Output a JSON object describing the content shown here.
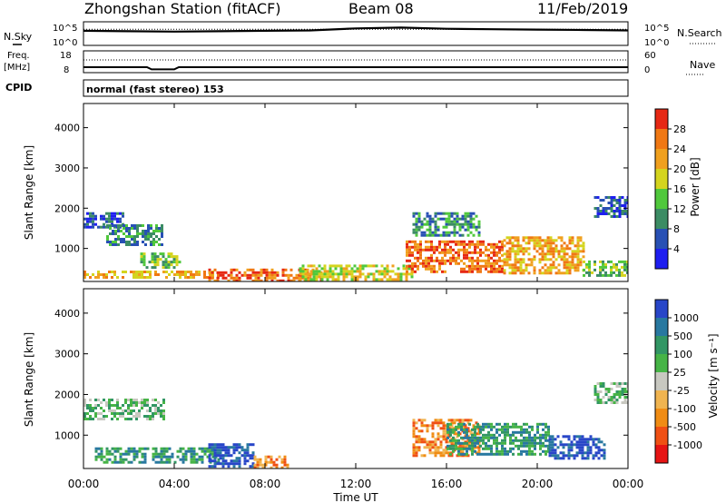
{
  "header": {
    "station": "Zhongshan Station (fitACF)",
    "beam": "Beam 08",
    "date": "11/Feb/2019"
  },
  "labels": {
    "nsky": "N.Sky",
    "nsearch": "N.Search",
    "freq": "Freq.",
    "mhz": "[MHz]",
    "nave": "Nave",
    "cpid": "CPID",
    "cpid_value": "normal (fast stereo) 153",
    "xlabel": "Time UT"
  },
  "chart_data": [
    {
      "type": "line",
      "panel": "noise",
      "y_ticks_left": [
        "10^5",
        "10^0"
      ],
      "y_ticks_right": [
        "10^5",
        "10^0"
      ],
      "series": [
        {
          "name": "N.Sky",
          "x": [
            0,
            2,
            4,
            6,
            8,
            10,
            12,
            14,
            16,
            18,
            20,
            22,
            24
          ],
          "values": [
            3.2,
            3.1,
            3.0,
            3.1,
            3.2,
            3.3,
            3.8,
            4.0,
            3.7,
            3.6,
            3.5,
            3.4,
            3.3
          ]
        },
        {
          "name": "N.Search",
          "x": [
            0,
            4,
            8,
            12,
            16,
            20,
            24
          ],
          "values": [
            3.6,
            3.6,
            3.6,
            3.6,
            3.6,
            3.6,
            3.6
          ]
        }
      ]
    },
    {
      "type": "line",
      "panel": "freq-nave",
      "y_ticks_left": [
        "18",
        "8"
      ],
      "y_ticks_right": [
        "60",
        "0"
      ],
      "series": [
        {
          "name": "Freq.",
          "x": [
            0,
            2.8,
            3.0,
            4.0,
            4.2,
            24
          ],
          "values": [
            10.0,
            10.0,
            8.8,
            8.8,
            10.0,
            10.0
          ]
        },
        {
          "name": "Nave",
          "x": [
            0,
            24
          ],
          "values": [
            36,
            36
          ]
        }
      ]
    },
    {
      "type": "heatmap",
      "panel": "power",
      "ylabel": "Slant Range [km]",
      "y_ticks": [
        1000,
        2000,
        3000,
        4000
      ],
      "ylim": [
        180,
        4600
      ],
      "xlim": [
        0,
        24
      ],
      "colorbar": {
        "label": "Power [dB]",
        "ticks": [
          4,
          8,
          12,
          16,
          20,
          24,
          28
        ],
        "colors": [
          "#1e1ef0",
          "#2850b4",
          "#3c8c64",
          "#50c83c",
          "#d4d41e",
          "#f0a01e",
          "#f07814",
          "#e62814"
        ]
      },
      "regions": [
        {
          "t": [
            0.0,
            1.8
          ],
          "r": [
            1500,
            1900
          ],
          "level": 1
        },
        {
          "t": [
            1.0,
            3.5
          ],
          "r": [
            1100,
            1600
          ],
          "level": 2
        },
        {
          "t": [
            0.0,
            6.0
          ],
          "r": [
            250,
            450
          ],
          "level": 5
        },
        {
          "t": [
            2.5,
            4.2
          ],
          "r": [
            550,
            900
          ],
          "level": 3
        },
        {
          "t": [
            5.5,
            10.5
          ],
          "r": [
            200,
            500
          ],
          "level": 6
        },
        {
          "t": [
            9.5,
            14.5
          ],
          "r": [
            250,
            600
          ],
          "level": 4
        },
        {
          "t": [
            14.2,
            18.5
          ],
          "r": [
            400,
            1200
          ],
          "level": 6
        },
        {
          "t": [
            14.5,
            17.5
          ],
          "r": [
            1300,
            1900
          ],
          "level": 2
        },
        {
          "t": [
            18.5,
            22.0
          ],
          "r": [
            400,
            1300
          ],
          "level": 5
        },
        {
          "t": [
            22.0,
            24.0
          ],
          "r": [
            300,
            700
          ],
          "level": 3
        },
        {
          "t": [
            22.5,
            24.0
          ],
          "r": [
            1800,
            2300
          ],
          "level": 1
        }
      ]
    },
    {
      "type": "heatmap",
      "panel": "velocity",
      "ylabel": "Slant Range [km]",
      "y_ticks": [
        1000,
        2000,
        3000,
        4000
      ],
      "ylim": [
        180,
        4600
      ],
      "xlim": [
        0,
        24
      ],
      "x_ticks": [
        "00:00",
        "04:00",
        "08:00",
        "12:00",
        "16:00",
        "20:00",
        "00:00"
      ],
      "colorbar": {
        "label": "Velocity [m s⁻¹]",
        "ticks": [
          1000,
          500,
          100,
          25,
          -25,
          -100,
          -500,
          -1000
        ],
        "colors": [
          "#2846c8",
          "#2878a0",
          "#329664",
          "#46b446",
          "#c8c8c0",
          "#f0b450",
          "#f08c14",
          "#f05014",
          "#e61414"
        ]
      },
      "regions": [
        {
          "t": [
            0.0,
            3.5
          ],
          "r": [
            1400,
            1900
          ],
          "v": 25
        },
        {
          "t": [
            0.5,
            6.0
          ],
          "r": [
            300,
            700
          ],
          "v": 100
        },
        {
          "t": [
            5.5,
            7.5
          ],
          "r": [
            250,
            800
          ],
          "v": 1000
        },
        {
          "t": [
            7.5,
            9.0
          ],
          "r": [
            200,
            500
          ],
          "v": -500
        },
        {
          "t": [
            14.5,
            17.5
          ],
          "r": [
            500,
            1400
          ],
          "v": -500
        },
        {
          "t": [
            16.0,
            20.5
          ],
          "r": [
            500,
            1300
          ],
          "v": 100
        },
        {
          "t": [
            20.5,
            23.0
          ],
          "r": [
            400,
            1000
          ],
          "v": 1000
        },
        {
          "t": [
            22.5,
            24.0
          ],
          "r": [
            1800,
            2300
          ],
          "v": 25
        }
      ]
    }
  ]
}
